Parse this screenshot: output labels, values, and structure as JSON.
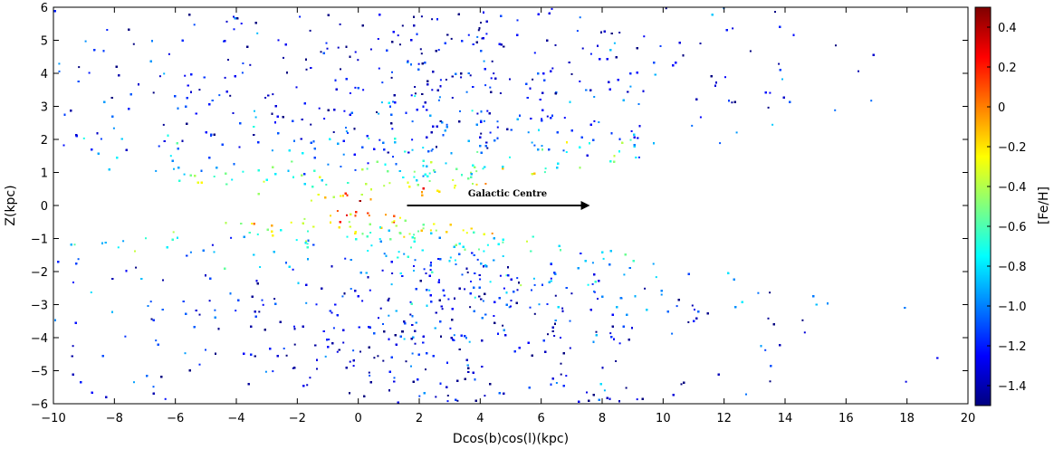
{
  "chart_data": {
    "type": "scatter",
    "title": "",
    "xlabel": "Dcos(b)cos(l)(kpc)",
    "ylabel": "Z(kpc)",
    "xlim": [
      -10,
      20
    ],
    "ylim": [
      -6,
      6
    ],
    "xticks": [
      -10,
      -8,
      -6,
      -4,
      -2,
      0,
      2,
      4,
      6,
      8,
      10,
      12,
      14,
      16,
      18,
      20
    ],
    "xtick_labels": [
      "−10",
      "−8",
      "−6",
      "−4",
      "−2",
      "0",
      "2",
      "4",
      "6",
      "8",
      "10",
      "12",
      "14",
      "16",
      "18",
      "20"
    ],
    "yticks": [
      -6,
      -5,
      -4,
      -3,
      -2,
      -1,
      0,
      1,
      2,
      3,
      4,
      5,
      6
    ],
    "ytick_labels": [
      "−6",
      "−5",
      "−4",
      "−3",
      "−2",
      "−1",
      "0",
      "1",
      "2",
      "3",
      "4",
      "5",
      "6"
    ],
    "grid": false,
    "colorbar": {
      "label": "[Fe/H]",
      "range": [
        -1.5,
        0.5
      ],
      "ticks": [
        0.4,
        0.2,
        0,
        -0.2,
        -0.4,
        -0.6,
        -0.8,
        -1.0,
        -1.2,
        -1.4
      ],
      "tick_labels": [
        "0.4",
        "0.2",
        "0",
        "−0.2",
        "−0.4",
        "−0.6",
        "−0.8",
        "−1.0",
        "−1.2",
        "−1.4"
      ],
      "colormap": "jet"
    },
    "annotation": {
      "text": "Galactic Centre",
      "arrow_from": [
        1.6,
        0
      ],
      "arrow_to": [
        7.6,
        0
      ]
    },
    "distribution": {
      "description_of_points": "dense star cloud; metal-rich near Z=0 and X≈0, metal-poor at large |Z|",
      "apex_x": 0,
      "apex_z": 0,
      "metal_rich_feh": 0.4,
      "metal_poor_feh": -1.3
    },
    "colors": {
      "jet": [
        "#00007f",
        "#0000ff",
        "#007fff",
        "#00ffff",
        "#7fff7f",
        "#ffff00",
        "#ff7f00",
        "#ff0000",
        "#7f0000"
      ]
    }
  }
}
